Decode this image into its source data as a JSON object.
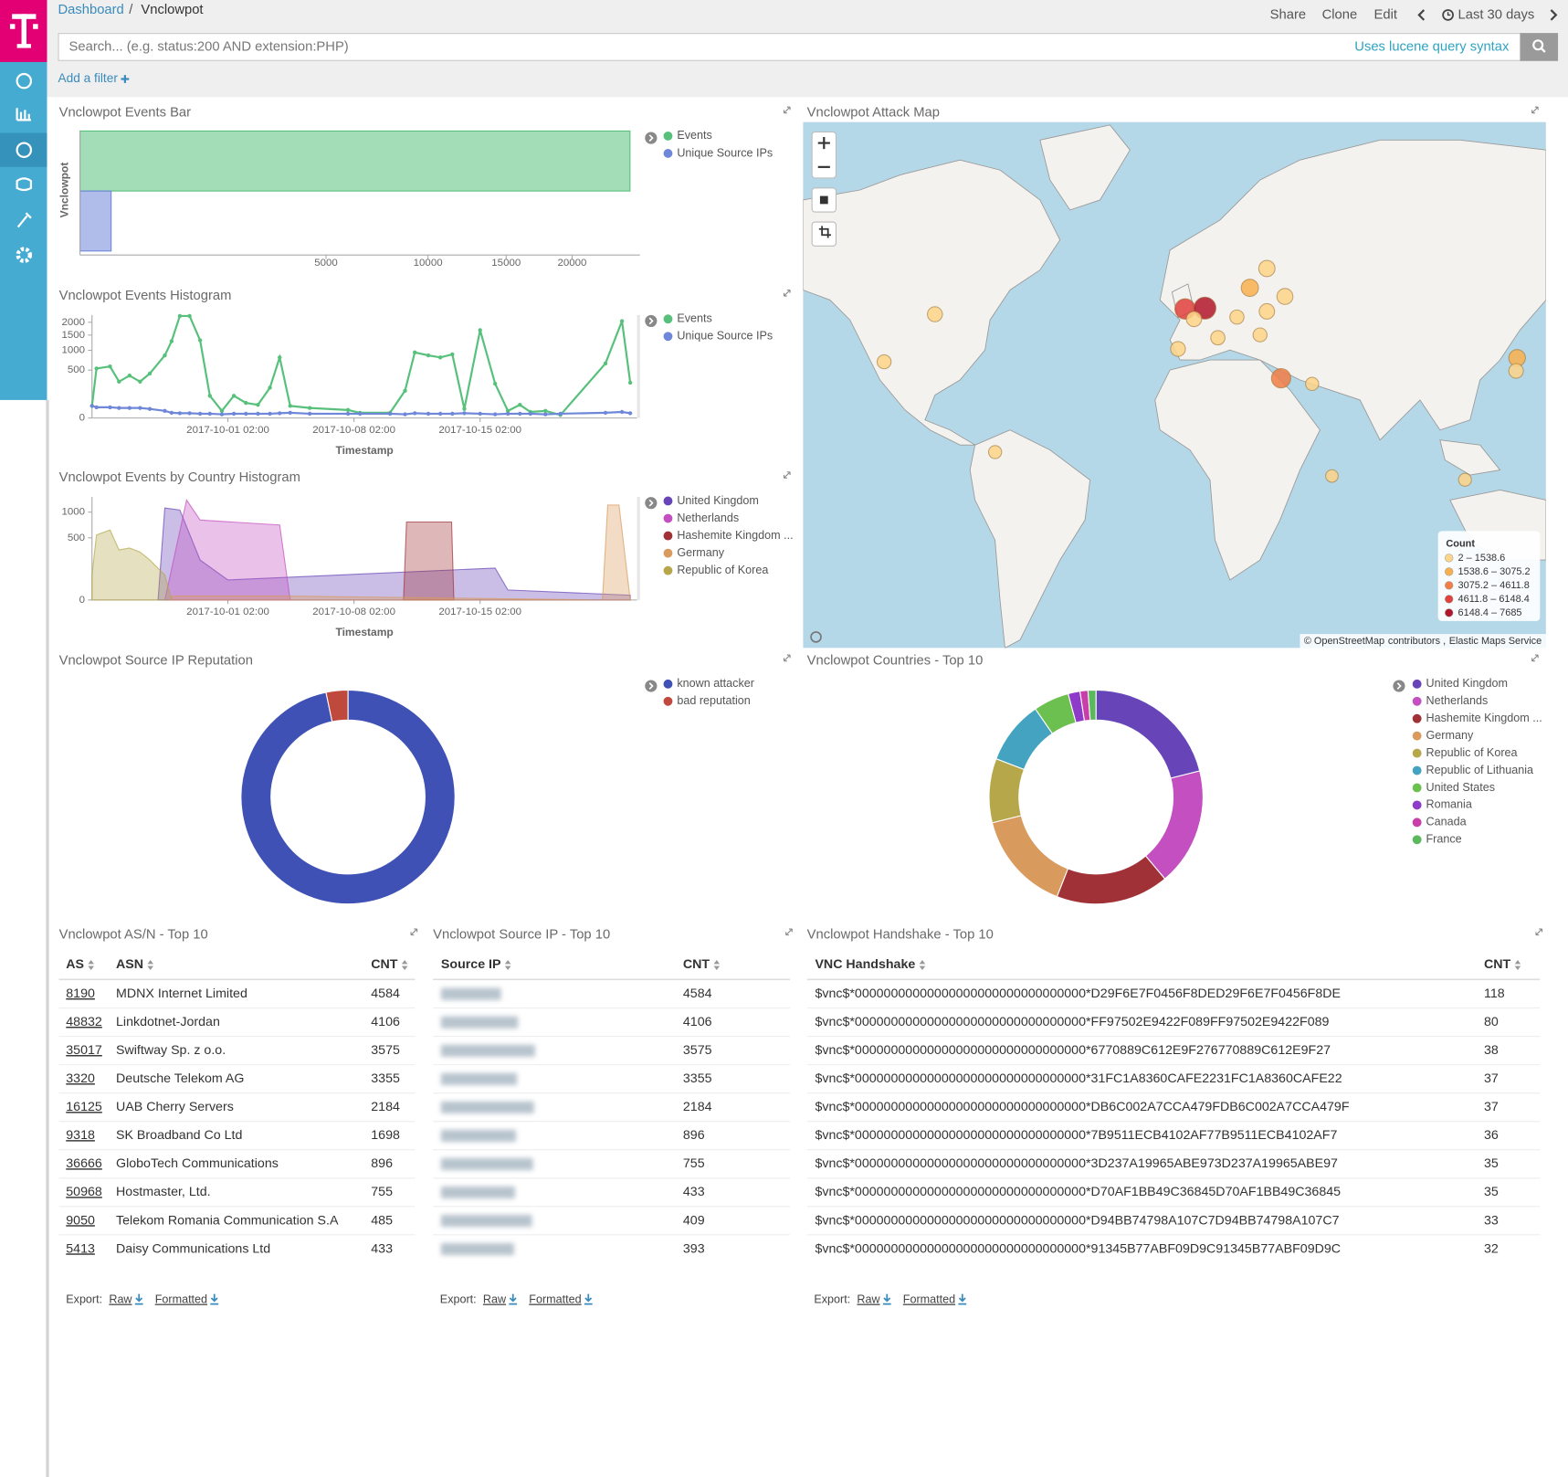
{
  "nav": {
    "breadcrumb": [
      "Dashboard",
      "Vnclowpot"
    ],
    "separator": "/",
    "actions": [
      "Share",
      "Clone",
      "Edit"
    ],
    "time_range": "Last 30 days"
  },
  "search": {
    "placeholder": "Search... (e.g. status:200 AND extension:PHP)",
    "hint": "Uses lucene query syntax"
  },
  "filter": {
    "add": "Add a filter"
  },
  "events_bar": {
    "type": "bar",
    "orientation": "horizontal",
    "title": "Vnclowpot Events Bar",
    "y_label": "Vnclowpot",
    "scale": "sqrt",
    "series": [
      {
        "name": "Events",
        "color": "#57c17b",
        "values": [
          24980
        ]
      },
      {
        "name": "Unique Source IPs",
        "color": "#6f87d8",
        "values": [
          80
        ]
      }
    ],
    "xlim": [
      0,
      25900
    ],
    "xticks": [
      5000,
      10000,
      15000,
      20000
    ]
  },
  "events_histogram": {
    "type": "line",
    "title": "Vnclowpot Events Histogram",
    "x_label": "Timestamp",
    "scale": "sqrt",
    "x": [
      "2017-09-23 13:00",
      "2017-09-23 19:00",
      "2017-09-24 13:00",
      "2017-09-25 01:00",
      "2017-09-25 15:00",
      "2017-09-26 05:00",
      "2017-09-26 18:00",
      "2017-09-27 14:00",
      "2017-09-27 23:00",
      "2017-09-28 10:00",
      "2017-09-28 23:00",
      "2017-09-29 13:00",
      "2017-09-30 02:00",
      "2017-09-30 18:00",
      "2017-10-01 10:00",
      "2017-10-02 02:00",
      "2017-10-02 18:00",
      "2017-10-03 10:00",
      "2017-10-03 23:00",
      "2017-10-04 13:00",
      "2017-10-05 15:00",
      "2017-10-07 18:00",
      "2017-10-08 10:00",
      "2017-10-10 02:00",
      "2017-10-10 22:00",
      "2017-10-11 11:00",
      "2017-10-12 05:00",
      "2017-10-12 21:00",
      "2017-10-13 13:00",
      "2017-10-14 05:00",
      "2017-10-15 02:00",
      "2017-10-15 22:00",
      "2017-10-16 15:00",
      "2017-10-17 07:00",
      "2017-10-17 21:00",
      "2017-10-18 17:00",
      "2017-10-19 13:00",
      "2017-10-22 01:00",
      "2017-10-22 23:00",
      "2017-10-23 10:00"
    ],
    "series": [
      {
        "name": "Events",
        "color": "#57c17b",
        "values": [
          32,
          535,
          579,
          289,
          392,
          289,
          431,
          855,
          1285,
          2270,
          2270,
          1319,
          108,
          11,
          108,
          50,
          38,
          200,
          801,
          32,
          22,
          14,
          6,
          6,
          162,
          940,
          855,
          801,
          883,
          18,
          1684,
          257,
          11,
          38,
          8,
          11,
          2,
          649,
          2050,
          273
        ]
      },
      {
        "name": "Unique Source IPs",
        "color": "#6f87d8",
        "values": [
          32,
          25,
          25,
          22,
          22,
          22,
          18,
          11,
          6,
          5,
          5,
          4,
          4,
          3,
          4,
          4,
          4,
          4,
          5,
          6,
          4,
          4,
          4,
          4,
          3,
          5,
          4,
          4,
          4,
          5,
          4,
          3,
          4,
          4,
          4,
          3,
          4,
          6,
          8,
          5
        ]
      }
    ],
    "xlim": [
      "2017-09-23 13:00",
      "2017-10-23 19:00"
    ],
    "xticks": [
      "2017-10-01 02:00",
      "2017-10-08 02:00",
      "2017-10-15 02:00"
    ],
    "ylim": [
      0,
      2315
    ],
    "yticks": [
      0,
      500,
      1000,
      1500,
      2000
    ]
  },
  "country_histogram": {
    "type": "area",
    "title": "Vnclowpot Events by Country Histogram",
    "x_label": "Timestamp",
    "scale": "sqrt",
    "series": [
      {
        "name": "United Kingdom",
        "color": "#6745b8",
        "x": [
          "2017-09-27 05:00",
          "2017-09-27 14:00",
          "2017-09-28 10:00",
          "2017-09-29 13:00",
          "2017-10-01 02:00",
          "2017-10-15 22:00",
          "2017-10-16 15:00",
          "2017-10-23 10:00"
        ],
        "values": [
          0,
          1095,
          1048,
          207,
          52,
          132,
          13,
          3
        ]
      },
      {
        "name": "Netherlands",
        "color": "#c34fc0",
        "x": [
          "2017-09-27 14:00",
          "2017-09-28 19:00",
          "2017-09-29 13:00",
          "2017-10-03 23:00",
          "2017-10-04 13:00"
        ],
        "values": [
          0,
          1294,
          828,
          728,
          0
        ]
      },
      {
        "name": "Hashemite Kingdom ...",
        "color": "#a03237",
        "x": [
          "2017-10-10 20:00",
          "2017-10-11 00:00",
          "2017-10-13 12:00",
          "2017-10-13 15:00"
        ],
        "values": [
          0,
          787,
          787,
          0
        ]
      },
      {
        "name": "Germany",
        "color": "#d99a5d",
        "x": [
          "2017-09-27 23:00",
          "2017-10-04 13:00",
          "2017-10-21 21:00",
          "2017-10-22 04:00",
          "2017-10-22 19:00",
          "2017-10-23 10:00"
        ],
        "values": [
          2,
          2,
          0,
          1168,
          1168,
          0
        ]
      },
      {
        "name": "Republic of Korea",
        "color": "#b5a74a",
        "x": [
          "2017-09-23 13:00",
          "2017-09-23 19:00",
          "2017-09-24 13:00",
          "2017-09-25 01:00",
          "2017-09-25 15:00",
          "2017-09-26 05:00",
          "2017-09-26 18:00",
          "2017-09-27 14:00",
          "2017-09-27 23:00"
        ],
        "values": [
          81,
          547,
          634,
          324,
          350,
          298,
          207,
          81,
          0
        ]
      }
    ],
    "xlim": [
      "2017-09-23 13:00",
      "2017-10-23 19:00"
    ],
    "xticks": [
      "2017-10-01 02:00",
      "2017-10-08 02:00",
      "2017-10-15 02:00"
    ],
    "ylim": [
      0,
      1373
    ],
    "yticks": [
      0,
      500,
      1000
    ]
  },
  "reputation": {
    "type": "pie",
    "donut": true,
    "title": "Vnclowpot Source IP Reputation",
    "categories": [
      "known attacker",
      "bad reputation"
    ],
    "values": [
      96.7,
      3.3
    ],
    "colors": [
      "#3f51b5",
      "#c0493e"
    ]
  },
  "countries": {
    "type": "pie",
    "donut": true,
    "title": "Vnclowpot Countries - Top 10",
    "categories": [
      "United Kingdom",
      "Netherlands",
      "Hashemite Kingdom ...",
      "Germany",
      "Republic of Korea",
      "Republic of Lithuania",
      "United States",
      "Romania",
      "Canada",
      "France"
    ],
    "values": [
      21.1,
      17.8,
      17.1,
      15.2,
      9.7,
      9.6,
      5.4,
      1.8,
      1.2,
      1.2
    ],
    "colors": [
      "#6745b8",
      "#c34fc0",
      "#a03237",
      "#d99a5d",
      "#b5a74a",
      "#43a3c0",
      "#6cc04f",
      "#8f3bca",
      "#c83faa",
      "#5cb85c"
    ]
  },
  "attack_map": {
    "type": "map",
    "title": "Vnclowpot Attack Map",
    "points": [
      {
        "lon": -122,
        "lat": 37.7,
        "count": 300
      },
      {
        "lon": -102,
        "lat": 51,
        "count": 700
      },
      {
        "lon": -78.3,
        "lat": 5.2,
        "count": 90
      },
      {
        "lon": -3.5,
        "lat": 52.3,
        "count": 5500
      },
      {
        "lon": 4.3,
        "lat": 52.5,
        "count": 7685
      },
      {
        "lon": 0,
        "lat": 49.8,
        "count": 800
      },
      {
        "lon": -6.3,
        "lat": 41.6,
        "count": 600
      },
      {
        "lon": 9.4,
        "lat": 44.8,
        "count": 400
      },
      {
        "lon": 16.9,
        "lat": 50.3,
        "count": 350
      },
      {
        "lon": 22,
        "lat": 57.1,
        "count": 2100
      },
      {
        "lon": 28.7,
        "lat": 61,
        "count": 1400
      },
      {
        "lon": 35.8,
        "lat": 55.2,
        "count": 1200
      },
      {
        "lon": 28.7,
        "lat": 51.7,
        "count": 900
      },
      {
        "lon": 26,
        "lat": 45.6,
        "count": 300
      },
      {
        "lon": 34.3,
        "lat": 32.4,
        "count": 4106
      },
      {
        "lon": 46.5,
        "lat": 30.5,
        "count": 100
      },
      {
        "lon": 54.3,
        "lat": -4.2,
        "count": 20
      },
      {
        "lon": 106.7,
        "lat": -5.7,
        "count": 60
      },
      {
        "lon": 127.2,
        "lat": 38.9,
        "count": 1700
      },
      {
        "lon": 126.8,
        "lat": 34.8,
        "count": 500
      }
    ],
    "legend": {
      "title": "Count",
      "ranges": [
        {
          "from": 2,
          "to": 1538.6,
          "label": "2 – 1538.6",
          "color": "#fdd587"
        },
        {
          "from": 1538.6,
          "to": 3075.2,
          "label": "1538.6 – 3075.2",
          "color": "#f8b04e"
        },
        {
          "from": 3075.2,
          "to": 4611.8,
          "label": "3075.2 – 4611.8",
          "color": "#f07e45"
        },
        {
          "from": 4611.8,
          "to": 6148.4,
          "label": "4611.8 – 6148.4",
          "color": "#e1403b"
        },
        {
          "from": 6148.4,
          "to": 7685,
          "label": "6148.4 – 7685",
          "color": "#b1172c"
        }
      ]
    },
    "attribution": [
      "©",
      "OpenStreetMap",
      "contributors ,",
      "Elastic Maps Service"
    ]
  },
  "tables": {
    "as_n": {
      "title": "Vnclowpot AS/N - Top 10",
      "columns": [
        "AS",
        "ASN",
        "CNT"
      ],
      "rows": [
        [
          8190,
          "MDNX Internet Limited",
          4584
        ],
        [
          48832,
          "Linkdotnet-Jordan",
          4106
        ],
        [
          35017,
          "Swiftway Sp. z o.o.",
          3575
        ],
        [
          3320,
          "Deutsche Telekom AG",
          3355
        ],
        [
          16125,
          "UAB Cherry Servers",
          2184
        ],
        [
          9318,
          "SK Broadband Co Ltd",
          1698
        ],
        [
          36666,
          "GloboTech Communications",
          896
        ],
        [
          50968,
          "Hostmaster, Ltd.",
          755
        ],
        [
          9050,
          "Telekom Romania Communication S.A",
          485
        ],
        [
          5413,
          "Daisy Communications Ltd",
          433
        ]
      ],
      "export": [
        "Export:",
        "Raw",
        "Formatted"
      ]
    },
    "source_ip": {
      "title": "Vnclowpot Source IP - Top 10",
      "columns": [
        "Source IP",
        "CNT"
      ],
      "rows": [
        [
          null,
          4584
        ],
        [
          null,
          4106
        ],
        [
          null,
          3575
        ],
        [
          null,
          3355
        ],
        [
          null,
          2184
        ],
        [
          null,
          896
        ],
        [
          null,
          755
        ],
        [
          null,
          433
        ],
        [
          null,
          409
        ],
        [
          null,
          393
        ]
      ],
      "export": [
        "Export:",
        "Raw",
        "Formatted"
      ]
    },
    "handshake": {
      "title": "Vnclowpot Handshake - Top 10",
      "columns": [
        "VNC Handshake",
        "CNT"
      ],
      "rows": [
        [
          "$vnc$*00000000000000000000000000000000*D29F6E7F0456F8DED29F6E7F0456F8DE",
          118
        ],
        [
          "$vnc$*00000000000000000000000000000000*FF97502E9422F089FF97502E9422F089",
          80
        ],
        [
          "$vnc$*00000000000000000000000000000000*6770889C612E9F276770889C612E9F27",
          38
        ],
        [
          "$vnc$*00000000000000000000000000000000*31FC1A8360CAFE2231FC1A8360CAFE22",
          37
        ],
        [
          "$vnc$*00000000000000000000000000000000*DB6C002A7CCA479FDB6C002A7CCA479F",
          37
        ],
        [
          "$vnc$*00000000000000000000000000000000*7B9511ECB4102AF77B9511ECB4102AF7",
          36
        ],
        [
          "$vnc$*00000000000000000000000000000000*3D237A19965ABE973D237A19965ABE97",
          35
        ],
        [
          "$vnc$*00000000000000000000000000000000*D70AF1BB49C36845D70AF1BB49C36845",
          35
        ],
        [
          "$vnc$*00000000000000000000000000000000*D94BB74798A107C7D94BB74798A107C7",
          33
        ],
        [
          "$vnc$*00000000000000000000000000000000*91345B77ABF09D9C91345B77ABF09D9C",
          32
        ]
      ],
      "export": [
        "Export:",
        "Raw",
        "Formatted"
      ]
    }
  }
}
